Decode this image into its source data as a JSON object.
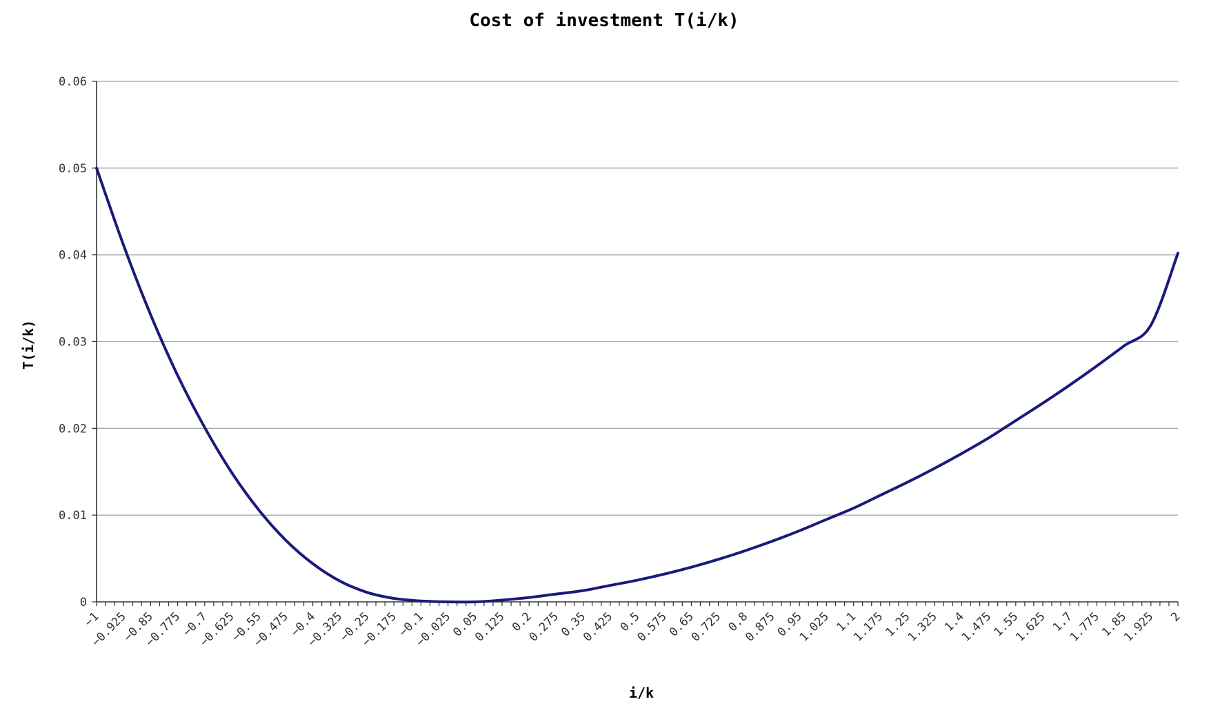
{
  "chart_data": {
    "type": "line",
    "title": "Cost of investment T(i/k)",
    "xlabel": "i/k",
    "ylabel": "T(i/k)",
    "ylim": [
      0,
      0.06
    ],
    "y_ticks": [
      {
        "value": 0,
        "label": "0"
      },
      {
        "value": 0.01,
        "label": "0.01"
      },
      {
        "value": 0.02,
        "label": "0.02"
      },
      {
        "value": 0.03,
        "label": "0.03"
      },
      {
        "value": 0.04,
        "label": "0.04"
      },
      {
        "value": 0.05,
        "label": "0.05"
      },
      {
        "value": 0.06,
        "label": "0.06"
      }
    ],
    "x_categories": [
      "-1",
      "-0.925",
      "-0.85",
      "-0.775",
      "-0.7",
      "-0.625",
      "-0.55",
      "-0.475",
      "-0.4",
      "-0.325",
      "-0.25",
      "-0.175",
      "-0.1",
      "-0.025",
      "0.05",
      "0.125",
      "0.2",
      "0.275",
      "0.35",
      "0.425",
      "0.5",
      "0.575",
      "0.65",
      "0.725",
      "0.8",
      "0.875",
      "0.95",
      "1.025",
      "1.1",
      "1.175",
      "1.25",
      "1.325",
      "1.4",
      "1.475",
      "1.55",
      "1.625",
      "1.7",
      "1.775",
      "1.85",
      "1.925",
      "2"
    ],
    "x_minor_step": 0.025,
    "grid": "horizontal",
    "series": [
      {
        "color": "#1a1a7a",
        "x": [
          -1,
          -0.925,
          -0.85,
          -0.775,
          -0.7,
          -0.625,
          -0.55,
          -0.475,
          -0.4,
          -0.325,
          -0.25,
          -0.175,
          -0.1,
          -0.025,
          0.05,
          0.125,
          0.2,
          0.275,
          0.35,
          0.425,
          0.5,
          0.575,
          0.65,
          0.725,
          0.8,
          0.875,
          0.95,
          1.025,
          1.1,
          1.175,
          1.25,
          1.325,
          1.4,
          1.475,
          1.55,
          1.625,
          1.7,
          1.775,
          1.85,
          1.925,
          2
        ],
        "values": [
          0.05,
          0.0411,
          0.0331,
          0.0261,
          0.0201,
          0.0149,
          0.0106,
          0.0071,
          0.0044,
          0.0024,
          0.0011,
          0.0004,
          0.0001,
          0.0,
          0.0,
          0.0002,
          0.0005,
          0.0009,
          0.0013,
          0.0019,
          0.0025,
          0.0032,
          0.004,
          0.0049,
          0.0059,
          0.007,
          0.0082,
          0.0095,
          0.0108,
          0.0123,
          0.0138,
          0.0154,
          0.0171,
          0.0189,
          0.0209,
          0.0229,
          0.025,
          0.0272,
          0.0295,
          0.0319,
          0.0402
        ]
      }
    ]
  }
}
